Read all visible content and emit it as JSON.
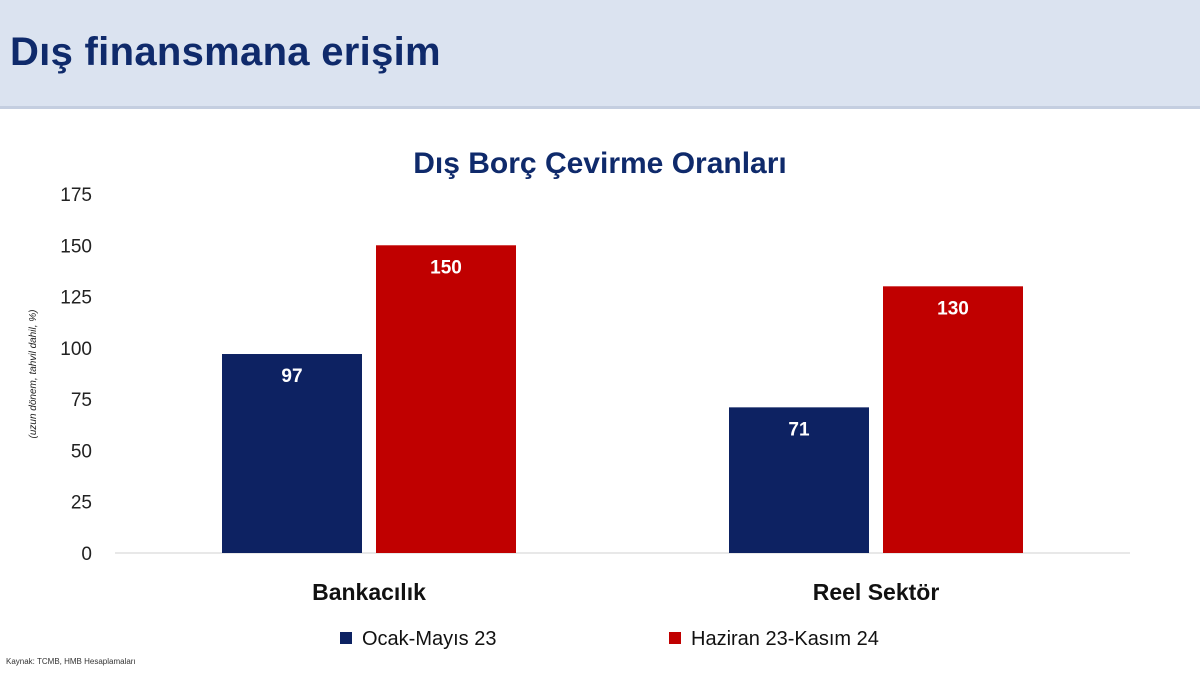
{
  "page": {
    "title": "Dış finansmana erişim",
    "source": "Kaynak: TCMB, HMB Hesaplamaları"
  },
  "colors": {
    "header_bg": "#dbe3f0",
    "title": "#0f2a6b",
    "series_1": "#0d2262",
    "series_2": "#c00000"
  },
  "chart_data": {
    "type": "bar",
    "title": "Dış Borç Çevirme Oranları",
    "ylabel": "(uzun dönem, tahvil dahil, %)",
    "xlabel": "",
    "categories": [
      "Bankacılık",
      "Reel Sektör"
    ],
    "series": [
      {
        "name": "Ocak-Mayıs 23",
        "values": [
          97,
          71
        ],
        "color": "#0d2262"
      },
      {
        "name": "Haziran 23-Kasım 24",
        "values": [
          150,
          130
        ],
        "color": "#c00000"
      }
    ],
    "ylim": [
      0,
      175
    ],
    "yticks": [
      0,
      25,
      50,
      75,
      100,
      125,
      150,
      175
    ],
    "grid": false,
    "legend": "bottom",
    "data_labels": true
  }
}
